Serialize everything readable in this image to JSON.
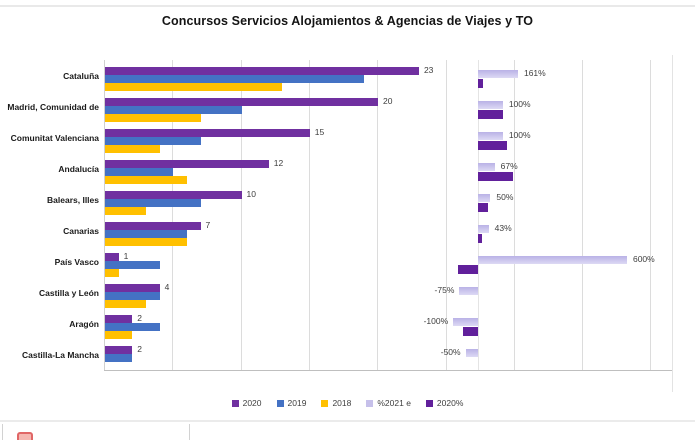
{
  "title": "Concursos Servicios Alojamientos & Agencias de Viajes y TO",
  "legend": [
    {
      "label": "2020",
      "color": "#7030A0"
    },
    {
      "label": "2019",
      "color": "#4472C4"
    },
    {
      "label": "2018",
      "color": "#FFC000"
    },
    {
      "label": "%2021 e",
      "color": "#C6C0EA"
    },
    {
      "label": "2020%",
      "color": "#61209B"
    }
  ],
  "chart_data": {
    "type": "bar",
    "orientation": "horizontal",
    "title": "Concursos Servicios Alojamientos & Agencias de Viajes y TO",
    "categories": [
      "Cataluña",
      "Madrid, Comunidad de",
      "Comunitat Valenciana",
      "Andalucía",
      "Balears, Illes",
      "Canarias",
      "País Vasco",
      "Castilla y León",
      "Aragón",
      "Castilla-La Mancha"
    ],
    "series": [
      {
        "name": "2020",
        "axis": "primary",
        "color": "#7030A0",
        "values": [
          23,
          20,
          15,
          12,
          10,
          7,
          1,
          4,
          2,
          2
        ],
        "data_labels": [
          "23",
          "20",
          "15",
          "12",
          "10",
          "7",
          "1",
          "4",
          "2",
          "2"
        ]
      },
      {
        "name": "2019",
        "axis": "primary",
        "color": "#4472C4",
        "values": [
          19,
          10,
          7,
          5,
          7,
          6,
          4,
          4,
          4,
          2
        ]
      },
      {
        "name": "2018",
        "axis": "primary",
        "color": "#FFC000",
        "values": [
          13,
          7,
          4,
          6,
          3,
          6,
          1,
          3,
          2,
          0
        ]
      },
      {
        "name": "%2021 e",
        "axis": "secondary",
        "color": "#C6C0EA",
        "values": [
          161,
          100,
          100,
          67,
          50,
          43,
          600,
          -75,
          -100,
          -50
        ],
        "data_labels": [
          "161%",
          "100%",
          "100%",
          "67%",
          "50%",
          "43%",
          "600%",
          "-75%",
          "-100%",
          "-50%"
        ]
      },
      {
        "name": "2020%",
        "axis": "secondary",
        "color": "#61209B",
        "values": [
          20,
          100,
          115,
          140,
          40,
          15,
          -80,
          0,
          -60,
          0
        ]
      }
    ],
    "primary_axis": {
      "min": 0,
      "max": 25,
      "gridline_interval": 5,
      "grid": true
    },
    "secondary_axis": {
      "zero_offset_shared_with_primary": true,
      "unit": "percent"
    },
    "legend_position": "bottom",
    "legend_entries": [
      "2020",
      "2019",
      "2018",
      "%2021 e",
      "2020%"
    ]
  }
}
